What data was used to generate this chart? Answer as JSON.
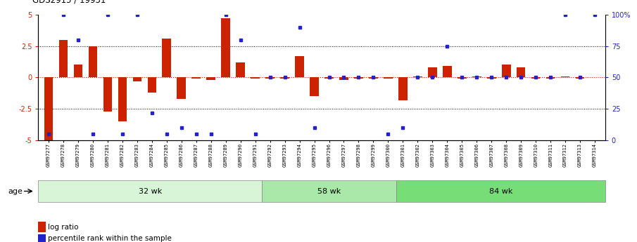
{
  "title": "GDS2915 / 19931",
  "samples": [
    "GSM97277",
    "GSM97278",
    "GSM97279",
    "GSM97280",
    "GSM97281",
    "GSM97282",
    "GSM97283",
    "GSM97284",
    "GSM97285",
    "GSM97286",
    "GSM97287",
    "GSM97288",
    "GSM97289",
    "GSM97290",
    "GSM97291",
    "GSM97292",
    "GSM97293",
    "GSM97294",
    "GSM97295",
    "GSM97296",
    "GSM97297",
    "GSM97298",
    "GSM97299",
    "GSM97300",
    "GSM97301",
    "GSM97302",
    "GSM97303",
    "GSM97304",
    "GSM97305",
    "GSM97306",
    "GSM97307",
    "GSM97308",
    "GSM97309",
    "GSM97310",
    "GSM97311",
    "GSM97312",
    "GSM97313",
    "GSM97314"
  ],
  "log_ratio": [
    -5.0,
    3.0,
    1.0,
    2.5,
    -2.7,
    -3.5,
    -0.3,
    -1.2,
    3.1,
    -1.7,
    -0.1,
    -0.2,
    4.7,
    1.2,
    -0.1,
    -0.1,
    -0.1,
    1.7,
    -1.5,
    -0.1,
    -0.2,
    -0.1,
    -0.1,
    -0.1,
    -1.8,
    0.1,
    0.8,
    0.9,
    -0.1,
    0.1,
    -0.1,
    1.0,
    0.8,
    -0.1,
    -0.1,
    0.1,
    -0.1,
    0.0
  ],
  "percentile": [
    5,
    100,
    80,
    5,
    100,
    5,
    100,
    22,
    5,
    10,
    5,
    5,
    100,
    80,
    5,
    50,
    50,
    90,
    10,
    50,
    50,
    50,
    50,
    5,
    10,
    50,
    50,
    75,
    50,
    50,
    50,
    50,
    50,
    50,
    50,
    100,
    50,
    100
  ],
  "groups": [
    {
      "label": "32 wk",
      "start": 0,
      "end": 15,
      "color": "#d8f5d8"
    },
    {
      "label": "58 wk",
      "start": 15,
      "end": 24,
      "color": "#aae8aa"
    },
    {
      "label": "84 wk",
      "start": 24,
      "end": 38,
      "color": "#77dd77"
    }
  ],
  "bar_color": "#cc2200",
  "dot_color": "#2222cc",
  "plot_bg": "#ffffff",
  "fig_bg": "#ffffff",
  "left_ytick_color": "#cc2200",
  "right_ytick_color": "#2222cc",
  "left_ytick_labels": [
    "-5",
    "-2.5",
    "0",
    "2.5",
    "5"
  ],
  "right_ytick_labels": [
    "0",
    "25",
    "50",
    "75",
    "100%"
  ],
  "legend_bar": "log ratio",
  "legend_dot": "percentile rank within the sample",
  "age_label": "age"
}
